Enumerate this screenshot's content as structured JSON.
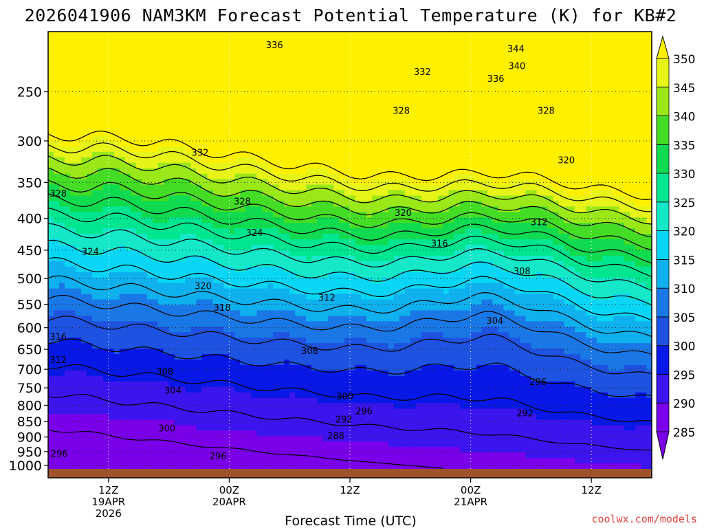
{
  "chart_data": {
    "type": "heatmap",
    "title": "2026041906 NAM3KM Forecast Potential Temperature (K) for KB#2",
    "xlabel": "Forecast Time (UTC)",
    "ylabel": "",
    "watermark": "coolwx.com/models",
    "x_ticks": [
      {
        "line1": "12Z",
        "line2": "19APR",
        "line3": "2026",
        "hour": 6
      },
      {
        "line1": "00Z",
        "line2": "20APR",
        "line3": "",
        "hour": 18
      },
      {
        "line1": "12Z",
        "line2": "",
        "line3": "",
        "hour": 30
      },
      {
        "line1": "00Z",
        "line2": "21APR",
        "line3": "",
        "hour": 42
      },
      {
        "line1": "12Z",
        "line2": "",
        "line3": "",
        "hour": 54
      }
    ],
    "x_range_hours": [
      0,
      60
    ],
    "y_ticks": [
      "250",
      "300",
      "350",
      "400",
      "450",
      "500",
      "550",
      "600",
      "650",
      "700",
      "750",
      "800",
      "850",
      "900",
      "950",
      "1000"
    ],
    "y_range_hpa": [
      1013,
      200
    ],
    "colorbar": {
      "levels": [
        285,
        290,
        295,
        300,
        305,
        310,
        315,
        320,
        325,
        330,
        335,
        340,
        345,
        350
      ],
      "labels": [
        "285",
        "290",
        "295",
        "300",
        "305",
        "310",
        "315",
        "320",
        "325",
        "330",
        "335",
        "340",
        "345",
        "350"
      ],
      "colors": [
        "#7a00ea",
        "#3c14ee",
        "#0818e6",
        "#1e52e0",
        "#1a78e6",
        "#0eb0ee",
        "#08d6f4",
        "#14e8c8",
        "#00e690",
        "#10da50",
        "#44dc24",
        "#9ae818",
        "#e6f418",
        "#fff000"
      ]
    },
    "contour_labels": [
      {
        "text": "336",
        "hour": 22.5,
        "p": 210
      },
      {
        "text": "344",
        "hour": 46.5,
        "p": 213
      },
      {
        "text": "340",
        "hour": 46.6,
        "p": 227
      },
      {
        "text": "332",
        "hour": 37.2,
        "p": 232
      },
      {
        "text": "336",
        "hour": 44.5,
        "p": 238
      },
      {
        "text": "328",
        "hour": 35.1,
        "p": 268
      },
      {
        "text": "328",
        "hour": 49.5,
        "p": 268
      },
      {
        "text": "332",
        "hour": 15.1,
        "p": 313
      },
      {
        "text": "320",
        "hour": 51.5,
        "p": 322
      },
      {
        "text": "328",
        "hour": 1.0,
        "p": 364
      },
      {
        "text": "328",
        "hour": 19.3,
        "p": 375
      },
      {
        "text": "320",
        "hour": 35.3,
        "p": 391
      },
      {
        "text": "312",
        "hour": 48.8,
        "p": 405
      },
      {
        "text": "324",
        "hour": 20.5,
        "p": 421
      },
      {
        "text": "316",
        "hour": 38.9,
        "p": 438
      },
      {
        "text": "324",
        "hour": 4.2,
        "p": 452
      },
      {
        "text": "308",
        "hour": 47.1,
        "p": 486
      },
      {
        "text": "320",
        "hour": 15.4,
        "p": 513
      },
      {
        "text": "312",
        "hour": 27.7,
        "p": 536
      },
      {
        "text": "318",
        "hour": 17.3,
        "p": 556
      },
      {
        "text": "304",
        "hour": 44.4,
        "p": 584
      },
      {
        "text": "316",
        "hour": 1.0,
        "p": 620
      },
      {
        "text": "308",
        "hour": 26.0,
        "p": 653
      },
      {
        "text": "312",
        "hour": 1.0,
        "p": 675
      },
      {
        "text": "308",
        "hour": 11.6,
        "p": 705
      },
      {
        "text": "296",
        "hour": 48.7,
        "p": 733
      },
      {
        "text": "304",
        "hour": 12.4,
        "p": 756
      },
      {
        "text": "300",
        "hour": 29.5,
        "p": 773
      },
      {
        "text": "296",
        "hour": 31.4,
        "p": 817
      },
      {
        "text": "292",
        "hour": 47.4,
        "p": 823
      },
      {
        "text": "292",
        "hour": 29.4,
        "p": 842
      },
      {
        "text": "300",
        "hour": 11.8,
        "p": 870
      },
      {
        "text": "288",
        "hour": 28.6,
        "p": 895
      },
      {
        "text": "296",
        "hour": 1.1,
        "p": 956
      },
      {
        "text": "296",
        "hour": 16.9,
        "p": 965
      }
    ]
  }
}
